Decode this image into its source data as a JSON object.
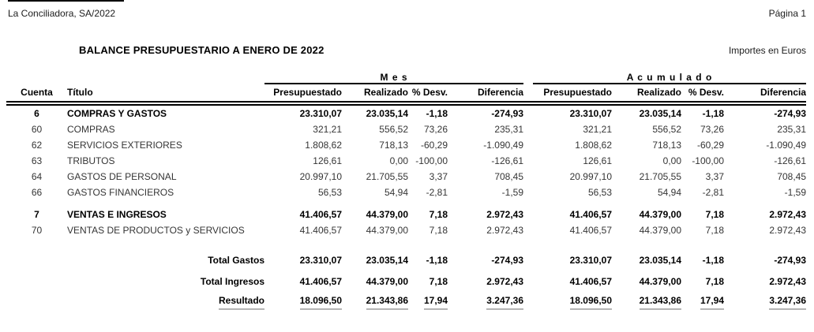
{
  "page": {
    "company": "La Conciliadora, SA/2022",
    "page_label": "Página 1",
    "title": "BALANCE PRESUPUESTARIO A ENERO DE 2022",
    "currency_note": "Importes en Euros"
  },
  "colors": {
    "text": "#000000",
    "rule": "#000000",
    "result_underline": "#b5b5b5"
  },
  "table": {
    "group_headers": {
      "mes": "M e s",
      "acumulado": "A c u m u l a d o"
    },
    "columns": {
      "cuenta": "Cuenta",
      "titulo": "Título",
      "presupuestado": "Presupuestado",
      "realizado": "Realizado",
      "desv": "% Desv.",
      "diferencia": "Diferencia"
    },
    "sections": [
      {
        "rows": [
          {
            "cuenta": "6",
            "titulo": "COMPRAS Y GASTOS",
            "bold": true,
            "mes": [
              "23.310,07",
              "23.035,14",
              "-1,18",
              "-274,93"
            ],
            "acumulado": [
              "23.310,07",
              "23.035,14",
              "-1,18",
              "-274,93"
            ]
          },
          {
            "cuenta": "60",
            "titulo": "COMPRAS",
            "bold": false,
            "mes": [
              "321,21",
              "556,52",
              "73,26",
              "235,31"
            ],
            "acumulado": [
              "321,21",
              "556,52",
              "73,26",
              "235,31"
            ]
          },
          {
            "cuenta": "62",
            "titulo": "SERVICIOS EXTERIORES",
            "bold": false,
            "mes": [
              "1.808,62",
              "718,13",
              "-60,29",
              "-1.090,49"
            ],
            "acumulado": [
              "1.808,62",
              "718,13",
              "-60,29",
              "-1.090,49"
            ]
          },
          {
            "cuenta": "63",
            "titulo": "TRIBUTOS",
            "bold": false,
            "mes": [
              "126,61",
              "0,00",
              "-100,00",
              "-126,61"
            ],
            "acumulado": [
              "126,61",
              "0,00",
              "-100,00",
              "-126,61"
            ]
          },
          {
            "cuenta": "64",
            "titulo": "GASTOS DE PERSONAL",
            "bold": false,
            "mes": [
              "20.997,10",
              "21.705,55",
              "3,37",
              "708,45"
            ],
            "acumulado": [
              "20.997,10",
              "21.705,55",
              "3,37",
              "708,45"
            ]
          },
          {
            "cuenta": "66",
            "titulo": "GASTOS FINANCIEROS",
            "bold": false,
            "mes": [
              "56,53",
              "54,94",
              "-2,81",
              "-1,59"
            ],
            "acumulado": [
              "56,53",
              "54,94",
              "-2,81",
              "-1,59"
            ]
          }
        ]
      },
      {
        "rows": [
          {
            "cuenta": "7",
            "titulo": "VENTAS E INGRESOS",
            "bold": true,
            "mes": [
              "41.406,57",
              "44.379,00",
              "7,18",
              "2.972,43"
            ],
            "acumulado": [
              "41.406,57",
              "44.379,00",
              "7,18",
              "2.972,43"
            ]
          },
          {
            "cuenta": "70",
            "titulo": "VENTAS DE PRODUCTOS y SERVICIOS",
            "bold": false,
            "mes": [
              "41.406,57",
              "44.379,00",
              "7,18",
              "2.972,43"
            ],
            "acumulado": [
              "41.406,57",
              "44.379,00",
              "7,18",
              "2.972,43"
            ]
          }
        ]
      }
    ],
    "totals": [
      {
        "label": "Total Gastos",
        "underline": false,
        "mes": [
          "23.310,07",
          "23.035,14",
          "-1,18",
          "-274,93"
        ],
        "acumulado": [
          "23.310,07",
          "23.035,14",
          "-1,18",
          "-274,93"
        ]
      },
      {
        "label": "Total Ingresos",
        "underline": false,
        "mes": [
          "41.406,57",
          "44.379,00",
          "7,18",
          "2.972,43"
        ],
        "acumulado": [
          "41.406,57",
          "44.379,00",
          "7,18",
          "2.972,43"
        ]
      },
      {
        "label": "Resultado",
        "underline": true,
        "mes": [
          "18.096,50",
          "21.343,86",
          "17,94",
          "3.247,36"
        ],
        "acumulado": [
          "18.096,50",
          "21.343,86",
          "17,94",
          "3.247,36"
        ]
      }
    ]
  }
}
